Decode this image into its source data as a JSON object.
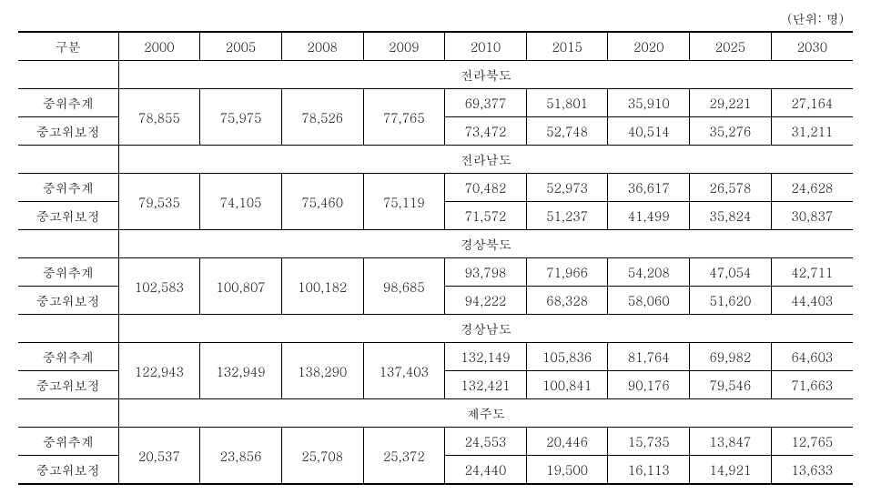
{
  "unit_label": "(단위: 명)",
  "header": {
    "col0": "구분",
    "years": [
      "2000",
      "2005",
      "2008",
      "2009",
      "2010",
      "2015",
      "2020",
      "2025",
      "2030"
    ]
  },
  "row_labels": {
    "mid": "중위추계",
    "midhigh": "중고위보정"
  },
  "regions": [
    {
      "name": "전라북도",
      "merged": [
        "78,855",
        "75,975",
        "78,526",
        "77,765"
      ],
      "mid": [
        "69,377",
        "51,801",
        "35,910",
        "29,221",
        "27,164"
      ],
      "midhigh": [
        "73,472",
        "52,748",
        "40,514",
        "35,276",
        "31,211"
      ]
    },
    {
      "name": "전라남도",
      "merged": [
        "79,535",
        "74,105",
        "75,460",
        "75,119"
      ],
      "mid": [
        "70,482",
        "52,973",
        "36,617",
        "26,578",
        "24,628"
      ],
      "midhigh": [
        "71,572",
        "51,237",
        "41,499",
        "35,824",
        "30,837"
      ]
    },
    {
      "name": "경상북도",
      "merged": [
        "102,583",
        "100,807",
        "100,182",
        "98,685"
      ],
      "mid": [
        "93,798",
        "71,966",
        "54,208",
        "47,054",
        "42,711"
      ],
      "midhigh": [
        "94,222",
        "68,328",
        "58,060",
        "51,620",
        "44,403"
      ]
    },
    {
      "name": "경상남도",
      "merged": [
        "122,943",
        "132,949",
        "138,290",
        "137,403"
      ],
      "mid": [
        "132,149",
        "105,836",
        "81,764",
        "69,982",
        "64,603"
      ],
      "midhigh": [
        "132,421",
        "100,841",
        "90,176",
        "79,546",
        "71,663"
      ]
    },
    {
      "name": "제주도",
      "merged": [
        "20,537",
        "23,856",
        "25,708",
        "25,372"
      ],
      "mid": [
        "24,553",
        "20,446",
        "15,735",
        "13,847",
        "12,765"
      ],
      "midhigh": [
        "24,440",
        "19,500",
        "16,113",
        "14,921",
        "13,633"
      ]
    }
  ],
  "style": {
    "background_color": "#ffffff",
    "text_color": "#000000",
    "border_color": "#000000",
    "font_size": 14,
    "header_border_top_width": 2,
    "bottom_border_width": 2,
    "cell_border_width": 1
  }
}
